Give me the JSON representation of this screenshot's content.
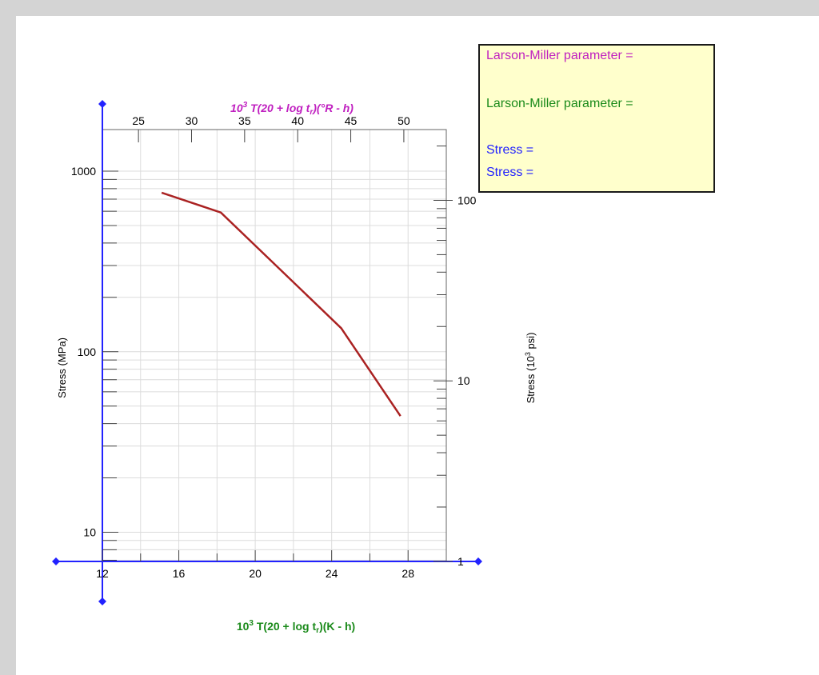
{
  "readout": {
    "lmp_label_1": "Larson-Miller parameter =",
    "lmp_label_2": "Larson-Miller parameter =",
    "stress_label_1": "Stress =",
    "stress_label_2": "Stress ="
  },
  "colors": {
    "magenta": "#c020c0",
    "green": "#1a8a1a",
    "blue": "#2222ff",
    "curve": "#aa2222"
  },
  "chart_data": {
    "type": "line",
    "x_axis_bottom": {
      "label_prefix": "10",
      "label_exp": "3",
      "label_main": " T(20 + log t",
      "label_sub": "r",
      "label_tail": ")(K - h)",
      "range": [
        12,
        30
      ],
      "ticks": [
        12,
        16,
        20,
        24,
        28
      ]
    },
    "x_axis_top": {
      "label_prefix": "10",
      "label_exp": "3",
      "label_main": " T(20 + log t",
      "label_sub": "r",
      "label_tail": ")(°R - h)",
      "ticks": [
        25,
        30,
        35,
        40,
        45,
        50
      ]
    },
    "y_axis_left": {
      "label": "Stress (MPa)",
      "scale": "log",
      "range": [
        6.89,
        1700
      ],
      "ticks": [
        10,
        100,
        1000
      ]
    },
    "y_axis_right": {
      "label_prefix": "Stress (10",
      "label_exp": "3",
      "label_tail": " psi)",
      "scale": "log",
      "ticks": [
        1,
        10,
        100
      ]
    },
    "series": [
      {
        "x": [
          15.1,
          18.2,
          24.5,
          27.6
        ],
        "y": [
          760,
          590,
          135,
          44
        ]
      }
    ],
    "grid": true
  }
}
